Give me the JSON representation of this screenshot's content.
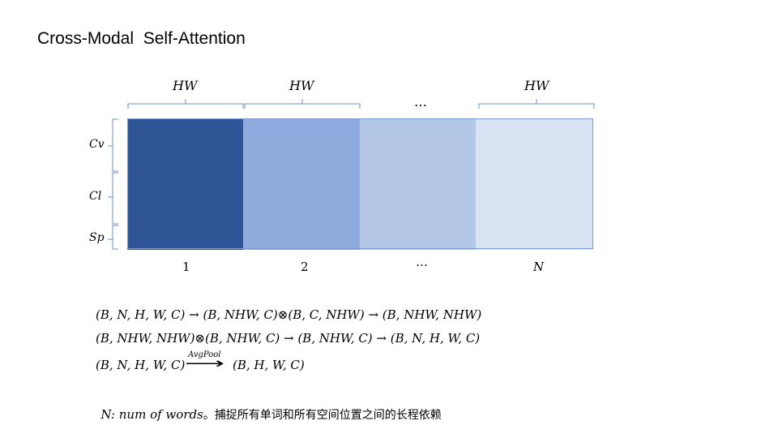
{
  "title": "Cross-Modal  Self-Attention",
  "hw_labels": [
    "HW",
    "HW",
    "HW"
  ],
  "top_ellipsis": "…",
  "rows": [
    "Cv",
    "Cl",
    "Sp"
  ],
  "segments": [
    {
      "label": "1",
      "color": "#2f5597"
    },
    {
      "label": "2",
      "color": "#8faadc"
    },
    {
      "label": "…",
      "color": "#b4c7e7"
    },
    {
      "label": "N",
      "color": "#dae3f3"
    }
  ],
  "equations": {
    "eq1": "(B, N, H, W, C) → (B, NHW, C)⊗(B, C, NHW) → (B, NHW, NHW)",
    "eq2": "(B, NHW, NHW)⊗(B, NHW, C) → (B, NHW, C) → (B, N, H, W, C)",
    "eq3_left": "(B, N, H, W, C)",
    "eq3_arrow": "⟶",
    "eq3_right": "(B, H, W, C)",
    "avgpool": "AvgPool"
  },
  "note": {
    "math": "N: num of words",
    "text": "。捕捉所有单词和所有空间位置之间的长程依赖"
  }
}
